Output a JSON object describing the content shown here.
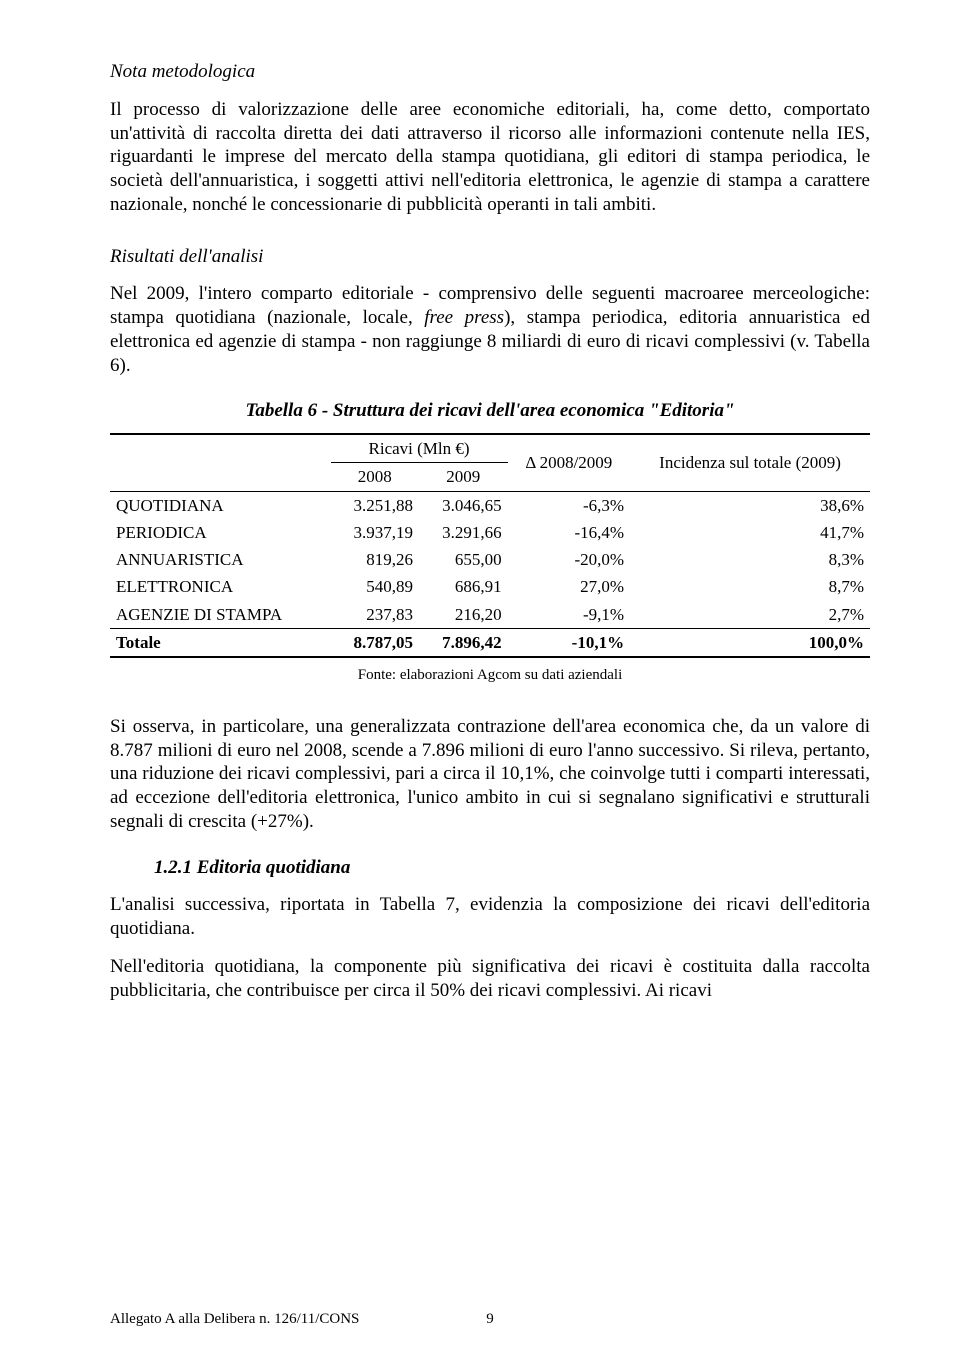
{
  "section1": {
    "title": "Nota metodologica",
    "para": "Il processo di valorizzazione delle aree economiche editoriali, ha, come detto, comportato un'attività di raccolta diretta dei dati attraverso il ricorso alle informazioni contenute nella IES, riguardanti le imprese del mercato della stampa quotidiana, gli editori di stampa periodica, le società dell'annuaristica, i soggetti attivi nell'editoria elettronica, le agenzie di stampa a carattere nazionale, nonché le concessionarie di pubblicità operanti in tali ambiti."
  },
  "section2": {
    "title": "Risultati dell'analisi",
    "para_before": "Nel 2009, l'intero comparto editoriale - comprensivo delle seguenti macroaree merceologiche: stampa quotidiana (nazionale, locale, ",
    "para_italic": "free press",
    "para_after": "), stampa periodica, editoria annuaristica ed elettronica ed agenzie di stampa - non raggiunge 8 miliardi di euro di ricavi complessivi (v. Tabella 6)."
  },
  "table": {
    "caption": "Tabella 6 - Struttura dei ricavi dell'area economica \"Editoria\"",
    "header_ricavi": "Ricavi (Mln €)",
    "header_2008": "2008",
    "header_2009": "2009",
    "header_delta": "Δ 2008/2009",
    "header_incidenza": "Incidenza sul totale (2009)",
    "rows": [
      {
        "label": "QUOTIDIANA",
        "v2008": "3.251,88",
        "v2009": "3.046,65",
        "delta": "-6,3%",
        "inc": "38,6%"
      },
      {
        "label": "PERIODICA",
        "v2008": "3.937,19",
        "v2009": "3.291,66",
        "delta": "-16,4%",
        "inc": "41,7%"
      },
      {
        "label": "ANNUARISTICA",
        "v2008": "819,26",
        "v2009": "655,00",
        "delta": "-20,0%",
        "inc": "8,3%"
      },
      {
        "label": "ELETTRONICA",
        "v2008": "540,89",
        "v2009": "686,91",
        "delta": "27,0%",
        "inc": "8,7%"
      },
      {
        "label": "AGENZIE DI STAMPA",
        "v2008": "237,83",
        "v2009": "216,20",
        "delta": "-9,1%",
        "inc": "2,7%"
      }
    ],
    "total": {
      "label": "Totale",
      "v2008": "8.787,05",
      "v2009": "7.896,42",
      "delta": "-10,1%",
      "inc": "100,0%"
    },
    "source": "Fonte: elaborazioni Agcom su dati aziendali"
  },
  "para3": "Si osserva, in particolare, una generalizzata contrazione dell'area economica che, da un valore di 8.787 milioni di euro nel 2008, scende a 7.896 milioni di euro l'anno successivo. Si rileva, pertanto, una riduzione dei ricavi complessivi, pari a circa il 10,1%, che coinvolge tutti i comparti interessati, ad eccezione dell'editoria elettronica, l'unico ambito in cui si segnalano significativi e strutturali segnali di crescita (+27%).",
  "subsection": {
    "title": "1.2.1 Editoria quotidiana",
    "para1": "L'analisi successiva, riportata in Tabella 7, evidenzia la composizione dei ricavi dell'editoria quotidiana.",
    "para2": "Nell'editoria quotidiana, la componente più significativa dei ricavi è costituita dalla raccolta pubblicitaria, che contribuisce per circa il 50% dei ricavi complessivi. Ai ricavi"
  },
  "footer": {
    "left": "Allegato A alla Delibera n. 126/11/CONS",
    "page": "9"
  }
}
